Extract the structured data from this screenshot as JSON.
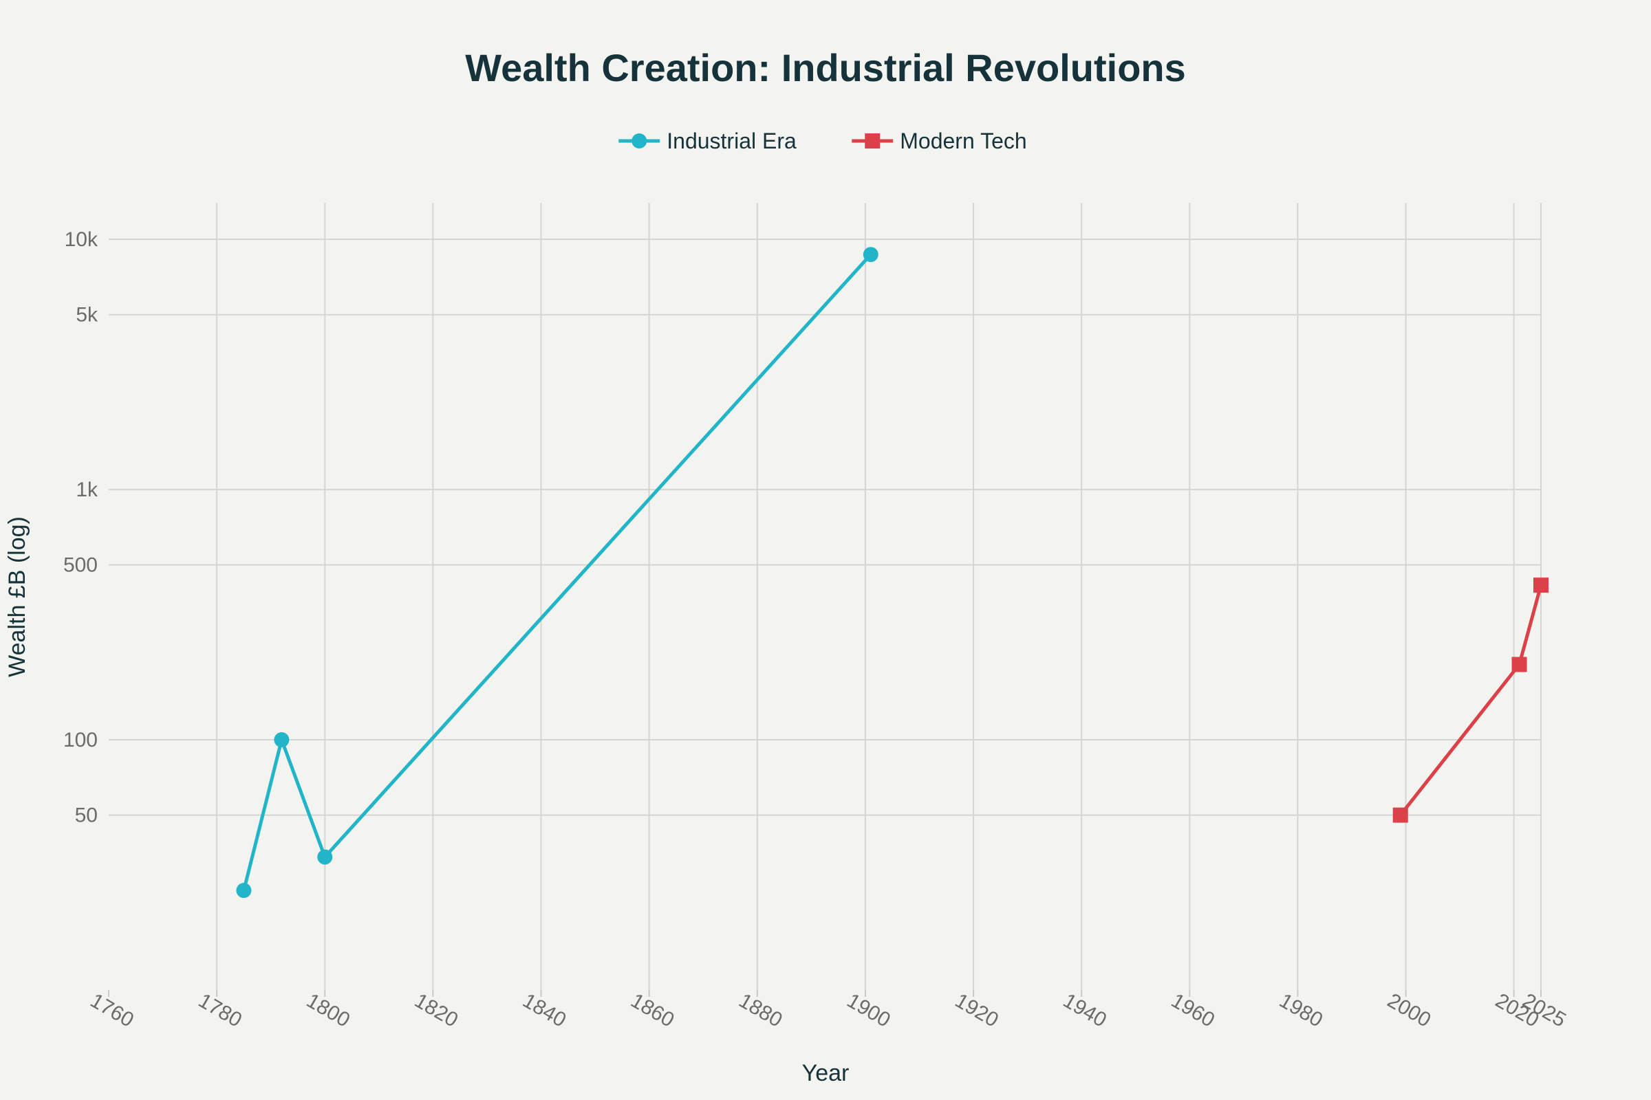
{
  "chart_data": {
    "type": "line",
    "title": "Wealth Creation: Industrial Revolutions",
    "xlabel": "Year",
    "ylabel": "Wealth £B (log)",
    "xlim": [
      1760,
      2025
    ],
    "ylim_log": [
      10,
      14000
    ],
    "y_scale": "log",
    "x_ticks": [
      1760,
      1780,
      1800,
      1820,
      1840,
      1860,
      1880,
      1900,
      1920,
      1940,
      1960,
      1980,
      2000,
      2020,
      2025
    ],
    "y_ticks": [
      {
        "value": 50,
        "label": "50"
      },
      {
        "value": 100,
        "label": "100"
      },
      {
        "value": 500,
        "label": "500"
      },
      {
        "value": 1000,
        "label": "1k"
      },
      {
        "value": 5000,
        "label": "5k"
      },
      {
        "value": 10000,
        "label": "10k"
      }
    ],
    "legend_position": "top-center",
    "grid": true,
    "series": [
      {
        "name": "Industrial Era",
        "color": "#22b5c8",
        "marker": "circle",
        "x": [
          1785,
          1792,
          1800,
          1901
        ],
        "y": [
          25,
          100,
          34,
          8700
        ]
      },
      {
        "name": "Modern Tech",
        "color": "#dc4048",
        "marker": "square",
        "x": [
          1999,
          2021,
          2025
        ],
        "y": [
          50,
          200,
          415
        ]
      }
    ]
  }
}
